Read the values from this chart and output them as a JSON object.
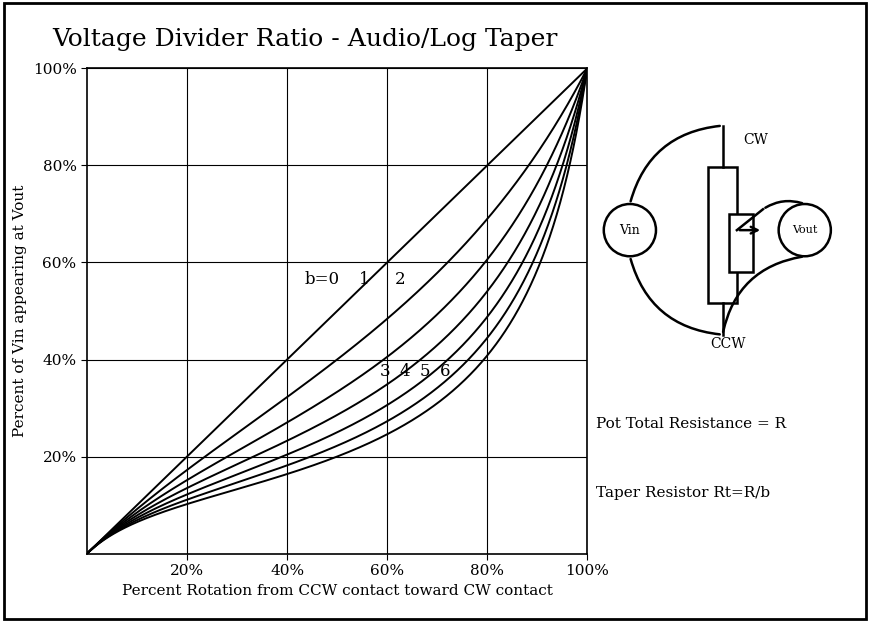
{
  "title": "Voltage Divider Ratio - Audio/Log Taper",
  "xlabel": "Percent Rotation from CCW contact toward CW contact",
  "ylabel": "Percent of Vin appearing at Vout",
  "b_values": [
    0,
    1,
    2,
    3,
    4,
    5,
    6
  ],
  "x_ticks": [
    0.2,
    0.4,
    0.6,
    0.8,
    1.0
  ],
  "y_ticks": [
    0.2,
    0.4,
    0.6,
    0.8,
    1.0
  ],
  "line_color": "#000000",
  "bg_color": "#ffffff",
  "grid_color": "#000000",
  "title_fontsize": 18,
  "label_fontsize": 11,
  "tick_fontsize": 11,
  "annotation_fontsize": 12,
  "note_text1": "Pot Total Resistance = R",
  "note_text2": "Taper Resistor Rt=R/b",
  "label_positions_x": [
    0.47,
    0.555,
    0.625,
    0.595,
    0.635,
    0.675,
    0.715
  ],
  "label_positions_y": [
    0.565,
    0.565,
    0.565,
    0.375,
    0.375,
    0.375,
    0.375
  ],
  "label_texts": [
    "b=0",
    "1",
    "2",
    "3",
    "4",
    "5",
    "6"
  ]
}
